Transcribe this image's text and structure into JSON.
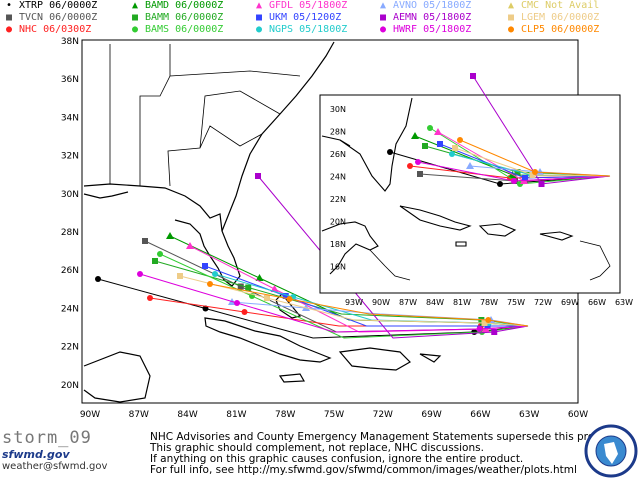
{
  "legend": [
    {
      "id": "xtrp",
      "label": "XTRP  06/0000Z",
      "color": "#000000",
      "icon": "dot-small"
    },
    {
      "id": "tvcn",
      "label": "TVCN  06/0000Z",
      "color": "#555555",
      "icon": "square"
    },
    {
      "id": "nhc",
      "label": "NHC  06/0300Z",
      "color": "#ff2020",
      "icon": "circle"
    },
    {
      "id": "bamd",
      "label": "BAMD  06/0000Z",
      "color": "#009900",
      "icon": "triangle"
    },
    {
      "id": "bamm",
      "label": "BAMM  06/0000Z",
      "color": "#22aa22",
      "icon": "square"
    },
    {
      "id": "bams",
      "label": "BAMS  06/0000Z",
      "color": "#33cc33",
      "icon": "circle"
    },
    {
      "id": "gfdl",
      "label": "GFDL  05/1800Z",
      "color": "#ff33cc",
      "icon": "triangle"
    },
    {
      "id": "ukm",
      "label": "UKM  05/1200Z",
      "color": "#3344ff",
      "icon": "square"
    },
    {
      "id": "ngps",
      "label": "NGPS  05/1800Z",
      "color": "#22cccc",
      "icon": "circle"
    },
    {
      "id": "avno",
      "label": "AVNO  05/1800Z",
      "color": "#88aaff",
      "icon": "triangle"
    },
    {
      "id": "aemn",
      "label": "AEMN  05/1800Z",
      "color": "#aa00cc",
      "icon": "square"
    },
    {
      "id": "hwrf",
      "label": "HWRF  05/1800Z",
      "color": "#dd00dd",
      "icon": "circle"
    },
    {
      "id": "cmc",
      "label": "CMC   Not Avail",
      "color": "#ddcc66",
      "icon": "triangle"
    },
    {
      "id": "lgem",
      "label": "LGEM  06/0000Z",
      "color": "#eecc88",
      "icon": "square"
    },
    {
      "id": "clp5",
      "label": "CLP5  06/0000Z",
      "color": "#ff8800",
      "icon": "circle"
    }
  ],
  "main_map": {
    "lat_labels": [
      "38N",
      "36N",
      "34N",
      "32N",
      "30N",
      "28N",
      "26N",
      "24N",
      "22N",
      "20N"
    ],
    "lon_labels": [
      "90W",
      "87W",
      "84W",
      "81W",
      "78W",
      "75W",
      "72W",
      "69W",
      "66W",
      "63W",
      "60W"
    ]
  },
  "inset_map": {
    "lat_labels": [
      "30N",
      "28N",
      "26N",
      "24N",
      "22N",
      "20N",
      "18N",
      "16N"
    ],
    "lon_labels": [
      "93W",
      "90W",
      "87W",
      "84W",
      "81W",
      "78W",
      "75W",
      "72W",
      "69W",
      "66W",
      "63W"
    ]
  },
  "footer": {
    "storm_name": "storm_09",
    "site": "sfwmd.gov",
    "email": "weather@sfwmd.gov",
    "lines": [
      "NHC Advisories and County Emergency Management Statements supersede this product.",
      "This graphic should complement, not replace, NHC discussions.",
      "If anything on this graphic causes confusion, ignore the entire product.",
      "For full info, see  http://my.sfwmd.gov/sfwmd/common/images/weather/plots.html"
    ]
  }
}
